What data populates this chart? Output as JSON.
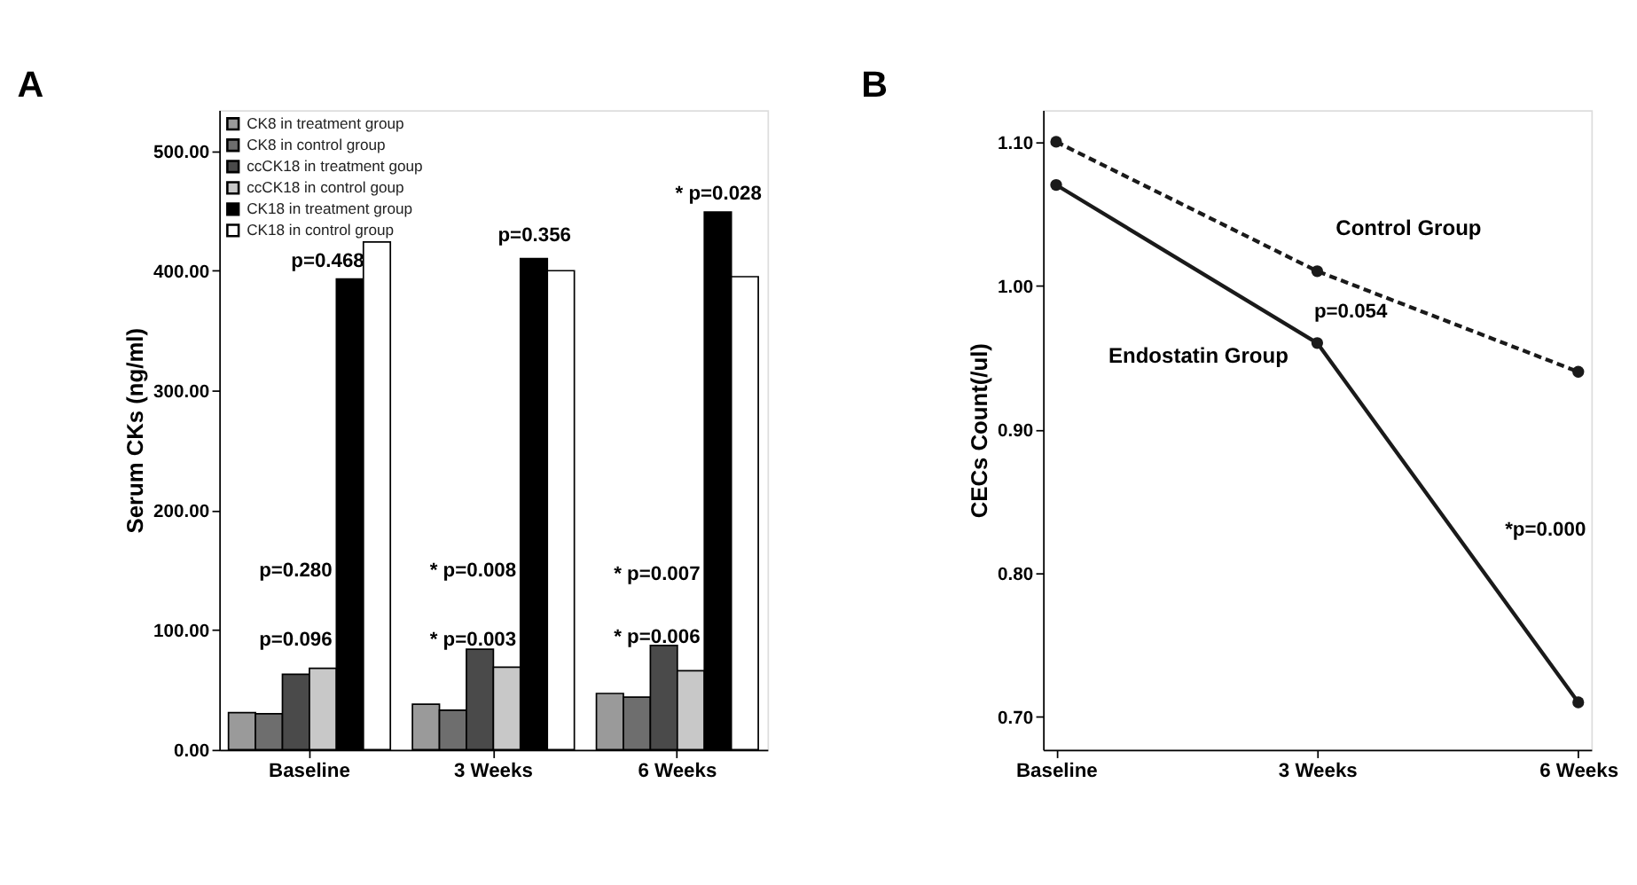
{
  "chart_data": [
    {
      "type": "bar",
      "title": "A",
      "ylabel": "Serum CKs (ng/ml)",
      "categories": [
        "Baseline",
        "3 Weeks",
        "6 Weeks"
      ],
      "series": [
        {
          "name": "CK8 in treatment group",
          "color": "#9a9a9a",
          "values": [
            31,
            38,
            47
          ]
        },
        {
          "name": "CK8 in control group",
          "color": "#6e6e6e",
          "values": [
            30,
            33,
            44
          ]
        },
        {
          "name": "ccCK18 in treatment goup",
          "color": "#4a4a4a",
          "values": [
            63,
            84,
            87
          ]
        },
        {
          "name": "ccCK18 in control goup",
          "color": "#c8c8c8",
          "values": [
            68,
            69,
            66
          ]
        },
        {
          "name": "CK18 in treatment group",
          "color": "#000000",
          "values": [
            393,
            410,
            449
          ]
        },
        {
          "name": "CK18 in control group",
          "color": "#ffffff",
          "values": [
            424,
            400,
            395
          ]
        }
      ],
      "ylim": [
        0,
        534
      ],
      "yticks": [
        {
          "value": 0,
          "label": "0.00"
        },
        {
          "value": 100,
          "label": "100.00"
        },
        {
          "value": 200,
          "label": "200.00"
        },
        {
          "value": 300,
          "label": "300.00"
        },
        {
          "value": 400,
          "label": "400.00"
        },
        {
          "value": 500,
          "label": "500.00"
        }
      ],
      "legend": "top left",
      "grid": false,
      "annotations": [
        "p=0.468",
        "p=0.356",
        "* p=0.028",
        "p=0.280",
        "p=0.096",
        "* p=0.008",
        "* p=0.003",
        "* p=0.007",
        "* p=0.006"
      ]
    },
    {
      "type": "line",
      "title": "B",
      "ylabel": "CECs Count(/ul)",
      "categories": [
        "Baseline",
        "3 Weeks",
        "6 Weeks"
      ],
      "series": [
        {
          "name": "Control Group",
          "color": "#1a1a1a",
          "values": [
            1.1,
            1.01,
            0.94
          ],
          "line_style": "dashed"
        },
        {
          "name": "Endostatin Group",
          "color": "#1a1a1a",
          "values": [
            1.07,
            0.96,
            0.71
          ],
          "line_style": "solid"
        }
      ],
      "marker": "circle",
      "ylim": [
        0.677,
        1.122
      ],
      "yticks": [
        {
          "value": 0.7,
          "label": "0.70"
        },
        {
          "value": 0.8,
          "label": "0.80"
        },
        {
          "value": 0.9,
          "label": "0.90"
        },
        {
          "value": 1.0,
          "label": "1.00"
        },
        {
          "value": 1.1,
          "label": "1.10"
        }
      ],
      "grid": false,
      "annotations": [
        "p=0.054",
        "*p=0.000"
      ]
    }
  ]
}
